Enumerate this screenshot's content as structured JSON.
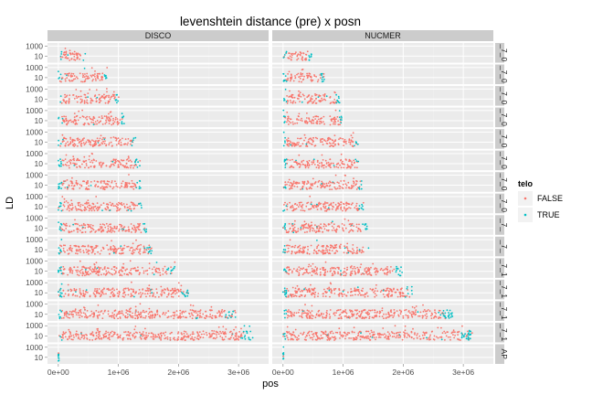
{
  "chart_data": {
    "type": "scatter",
    "title": "levenshtein distance (pre) x posn",
    "xlabel": "pos",
    "ylabel": "LD",
    "x_ticks": [
      {
        "value": 0,
        "label": "0e+00"
      },
      {
        "value": 1000000,
        "label": "1e+06"
      },
      {
        "value": 2000000,
        "label": "2e+06"
      },
      {
        "value": 3000000,
        "label": "3e+06"
      }
    ],
    "y_ticks": [
      {
        "value": 10,
        "label": "10"
      },
      {
        "value": 1000,
        "label": "1000"
      }
    ],
    "y_scale": "log10",
    "grid": true,
    "legend": {
      "title": "telo",
      "position": "right",
      "entries": [
        {
          "label": "FALSE",
          "color": "#F8766D"
        },
        {
          "label": "TRUE",
          "color": "#00BFC4"
        }
      ]
    },
    "column_facets": [
      "DISCO",
      "NUCMER"
    ],
    "row_facets": [
      {
        "label": "_7_0",
        "extent": [
          460000,
          480000
        ]
      },
      {
        "label": "_7_0",
        "extent": [
          820000,
          700000
        ]
      },
      {
        "label": "_7_0",
        "extent": [
          1010000,
          950000
        ]
      },
      {
        "label": "_7_0",
        "extent": [
          1110000,
          1000000
        ]
      },
      {
        "label": "_7_0",
        "extent": [
          1290000,
          1250000
        ]
      },
      {
        "label": "_7_0",
        "extent": [
          1360000,
          1280000
        ]
      },
      {
        "label": "_7_0",
        "extent": [
          1380000,
          1320000
        ]
      },
      {
        "label": "_7_0",
        "extent": [
          1400000,
          1340000
        ]
      },
      {
        "label": "_7_",
        "extent": [
          1470000,
          1410000
        ]
      },
      {
        "label": "_7_",
        "extent": [
          1560000,
          1430000
        ]
      },
      {
        "label": "_7_1",
        "extent": [
          1940000,
          1990000
        ]
      },
      {
        "label": "_7_1",
        "extent": [
          2180000,
          2160000
        ]
      },
      {
        "label": "_7_1",
        "extent": [
          2950000,
          2820000
        ]
      },
      {
        "label": "_7_1",
        "extent": [
          3250000,
          3150000
        ]
      },
      {
        "label": "AP",
        "extent": [
          10000,
          10000
        ]
      }
    ],
    "series": [
      {
        "name": "FALSE",
        "color": "#F8766D"
      },
      {
        "name": "TRUE",
        "color": "#00BFC4"
      }
    ]
  },
  "colors": {
    "panel_bg": "#ebebeb",
    "grid_major": "#ffffff",
    "grid_minor": "#f2f2f2",
    "strip_bg": "#cccccc"
  }
}
